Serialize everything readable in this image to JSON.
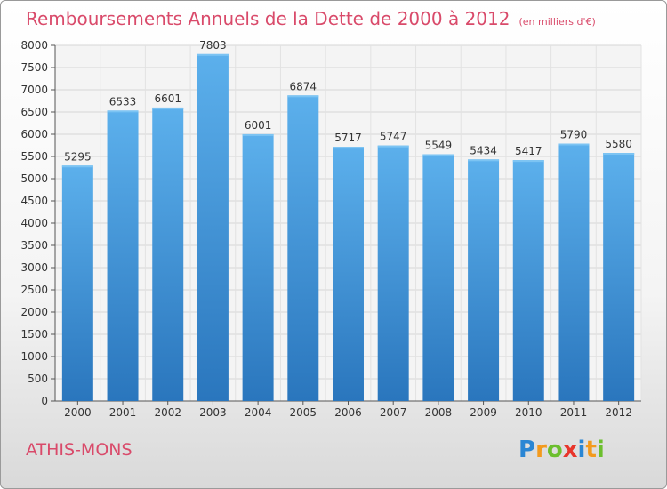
{
  "header": {
    "title": "Remboursements Annuels de la Dette de 2000 à 2012",
    "subtitle": "(en milliers d'€)"
  },
  "footer": {
    "city": "ATHIS-MONS",
    "logo_letters": [
      "P",
      "r",
      "o",
      "x",
      "i",
      "t",
      "i"
    ],
    "logo_colors": [
      "#2a86d4",
      "#f39a1d",
      "#6cbf2e",
      "#e8352b",
      "#2a86d4",
      "#f39a1d",
      "#6cbf2e"
    ]
  },
  "chart_data": {
    "type": "bar",
    "title": "Remboursements Annuels de la Dette de 2000 à 2012",
    "subtitle": "(en milliers d'€)",
    "xlabel": "",
    "ylabel": "",
    "categories": [
      "2000",
      "2001",
      "2002",
      "2003",
      "2004",
      "2005",
      "2006",
      "2007",
      "2008",
      "2009",
      "2010",
      "2011",
      "2012"
    ],
    "values": [
      5295,
      6533,
      6601,
      7803,
      6001,
      6874,
      5717,
      5747,
      5549,
      5434,
      5417,
      5790,
      5580
    ],
    "ylim": [
      0,
      8000
    ],
    "yticks": [
      0,
      500,
      1000,
      1500,
      2000,
      2500,
      3000,
      3500,
      4000,
      4500,
      5000,
      5500,
      6000,
      6500,
      7000,
      7500,
      8000
    ],
    "grid": true,
    "bar_color": "#3d8fd6",
    "bar_color_light": "#5cb0ec",
    "bar_color_dark": "#2a76bd"
  }
}
